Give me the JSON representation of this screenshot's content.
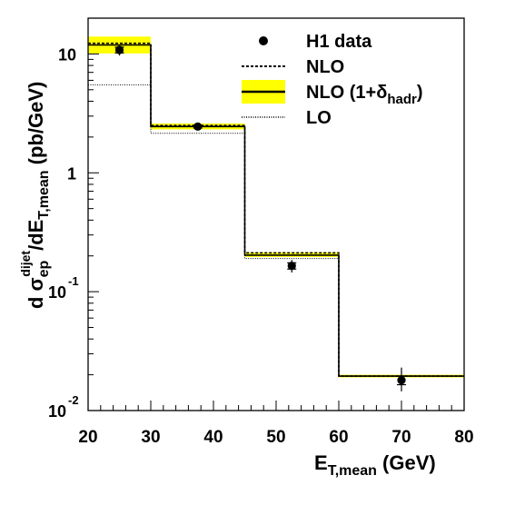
{
  "chart_data": {
    "type": "step",
    "xlim": [
      20,
      80
    ],
    "ylim": [
      0.01,
      20
    ],
    "yscale": "log",
    "bin_edges": [
      20,
      30,
      45,
      60,
      80
    ],
    "xticks": [
      20,
      30,
      40,
      50,
      60,
      70,
      80
    ],
    "yticks": [
      {
        "value": 10,
        "base": "10",
        "exp": ""
      },
      {
        "value": 1,
        "base": "1",
        "exp": ""
      },
      {
        "value": 0.1,
        "base": "10",
        "exp": "-1"
      },
      {
        "value": 0.01,
        "base": "10",
        "exp": "-2"
      }
    ],
    "xlabel": {
      "main": "E",
      "sub": "T,mean",
      "unit": "(GeV)"
    },
    "ylabel": {
      "d": "d",
      "sigma": "σ",
      "sigma_sub": "ep",
      "sigma_sup": "dijet",
      "slash": "/dE",
      "sub": "T,mean",
      "unit": "(pb/GeV)"
    },
    "series": [
      {
        "name": "H1 data",
        "kind": "points",
        "x": [
          25,
          37.5,
          52.5,
          70
        ],
        "y": [
          10.8,
          2.45,
          0.165,
          0.018
        ],
        "stat_err": [
          [
            10.2,
            11.4
          ],
          [
            2.38,
            2.52
          ],
          [
            0.155,
            0.175
          ],
          [
            0.0165,
            0.0195
          ]
        ],
        "tot_err": [
          [
            9.7,
            12.0
          ],
          [
            2.32,
            2.58
          ],
          [
            0.145,
            0.185
          ],
          [
            0.0145,
            0.023
          ]
        ]
      },
      {
        "name": "NLO",
        "kind": "step",
        "style": "dashed",
        "values": [
          12.3,
          2.5,
          0.212,
          0.0195
        ]
      },
      {
        "name": "NLO (1+δhadr)",
        "kind": "step-band",
        "style": "solid",
        "values": [
          11.9,
          2.45,
          0.203,
          0.0195
        ],
        "band_low": [
          10.1,
          2.32,
          0.196,
          0.019
        ],
        "band_high": [
          14.0,
          2.6,
          0.214,
          0.02
        ]
      },
      {
        "name": "LO",
        "kind": "step",
        "style": "dotted",
        "values": [
          5.5,
          2.15,
          0.19,
          0.0195
        ]
      }
    ],
    "legend": {
      "placement": "top-right",
      "entries": [
        {
          "label": "H1 data",
          "sub": ""
        },
        {
          "label": "NLO",
          "sub": ""
        },
        {
          "label": "NLO (1+δ",
          "sub": "hadr",
          "close": ")"
        },
        {
          "label": "LO",
          "sub": ""
        }
      ]
    },
    "colors": {
      "band": "#ffff00",
      "line": "#000000",
      "background": "#ffffff"
    }
  }
}
